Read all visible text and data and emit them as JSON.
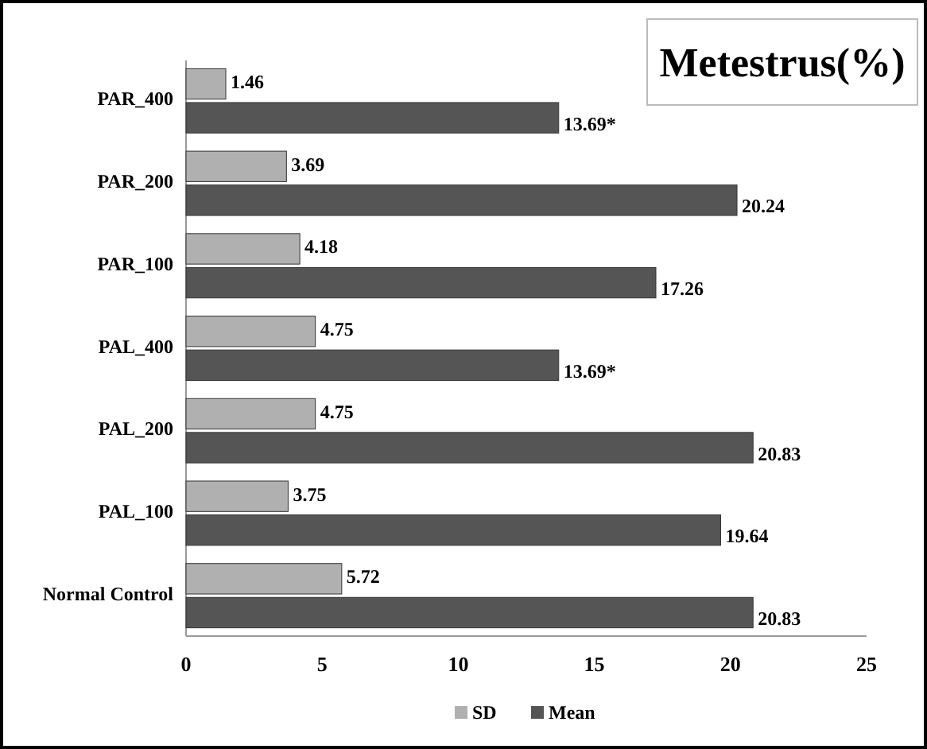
{
  "chart_data": {
    "type": "bar",
    "orientation": "horizontal",
    "title": "Metestrus(%)",
    "categories": [
      "PAR_400",
      "PAR_200",
      "PAR_100",
      "PAL_400",
      "PAL_200",
      "PAL_100",
      "Normal Control"
    ],
    "series": [
      {
        "name": "SD",
        "color": "#b0b0b0",
        "values": [
          1.46,
          3.69,
          4.18,
          4.75,
          4.75,
          3.75,
          5.72
        ],
        "value_labels": [
          "1.46",
          "3.69",
          "4.18",
          "4.75",
          "4.75",
          "3.75",
          "5.72"
        ]
      },
      {
        "name": "Mean",
        "color": "#555555",
        "values": [
          13.69,
          20.24,
          17.26,
          13.69,
          20.83,
          19.64,
          20.83
        ],
        "value_labels": [
          "13.69*",
          "20.24",
          "17.26",
          "13.69*",
          "20.83",
          "19.64",
          "20.83"
        ]
      }
    ],
    "xlim": [
      0,
      25
    ],
    "xticks": [
      0,
      5,
      10,
      15,
      20,
      25
    ],
    "grid": false,
    "legend": "bottom"
  }
}
